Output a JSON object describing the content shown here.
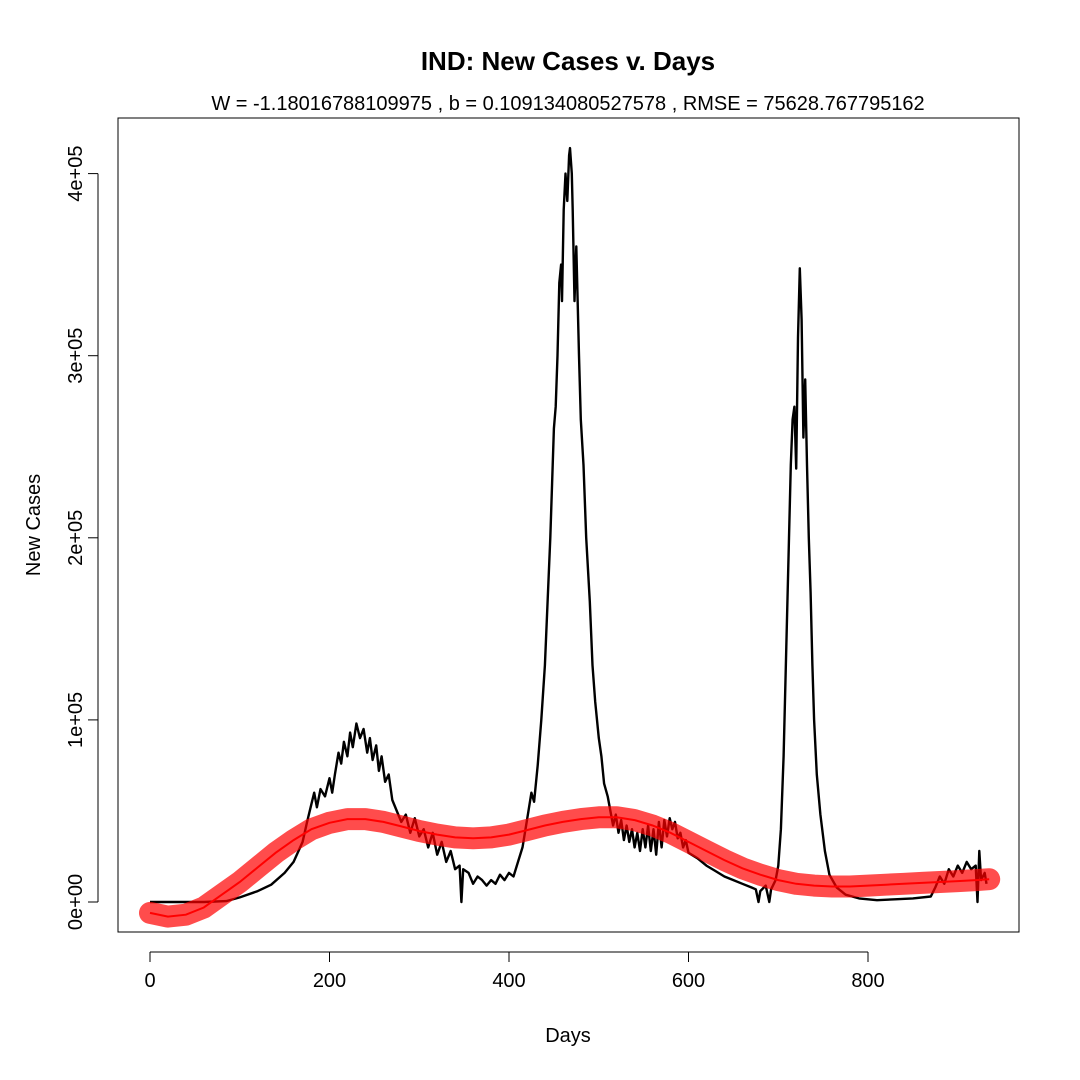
{
  "chart_data": {
    "type": "line",
    "title": "IND: New Cases v. Days",
    "subtitle": "W = -1.18016788109975 , b = 0.109134080527578 , RMSE = 75628.767795162",
    "xlabel": "Days",
    "ylabel": "New Cases",
    "xlim": [
      0,
      1000
    ],
    "ylim": [
      -15000,
      432000
    ],
    "x_ticks": [
      0,
      200,
      400,
      600,
      800
    ],
    "x_tick_labels": [
      "0",
      "200",
      "400",
      "600",
      "800"
    ],
    "y_ticks": [
      0,
      100000,
      200000,
      300000,
      400000
    ],
    "y_tick_labels": [
      "0e+00",
      "1e+05",
      "2e+05",
      "3e+05",
      "4e+05"
    ],
    "grid": false,
    "series": [
      {
        "color": "#000000",
        "points": [
          [
            0,
            0
          ],
          [
            30,
            0
          ],
          [
            60,
            0
          ],
          [
            85,
            500
          ],
          [
            100,
            2500
          ],
          [
            120,
            6000
          ],
          [
            135,
            9500
          ],
          [
            150,
            16000
          ],
          [
            160,
            22000
          ],
          [
            170,
            33000
          ],
          [
            175,
            44000
          ],
          [
            180,
            54000
          ],
          [
            183,
            60000
          ],
          [
            186,
            52000
          ],
          [
            190,
            62000
          ],
          [
            195,
            58000
          ],
          [
            200,
            68000
          ],
          [
            203,
            60000
          ],
          [
            206,
            70000
          ],
          [
            210,
            82000
          ],
          [
            213,
            76000
          ],
          [
            216,
            88000
          ],
          [
            220,
            80000
          ],
          [
            223,
            93000
          ],
          [
            226,
            85000
          ],
          [
            230,
            98000
          ],
          [
            234,
            90000
          ],
          [
            238,
            95000
          ],
          [
            242,
            82000
          ],
          [
            245,
            90000
          ],
          [
            248,
            78000
          ],
          [
            252,
            86000
          ],
          [
            255,
            72000
          ],
          [
            258,
            80000
          ],
          [
            262,
            66000
          ],
          [
            266,
            70000
          ],
          [
            270,
            56000
          ],
          [
            275,
            50000
          ],
          [
            280,
            44000
          ],
          [
            285,
            48000
          ],
          [
            290,
            38000
          ],
          [
            295,
            46000
          ],
          [
            300,
            36000
          ],
          [
            305,
            40000
          ],
          [
            310,
            30000
          ],
          [
            315,
            38000
          ],
          [
            320,
            26000
          ],
          [
            325,
            33000
          ],
          [
            330,
            22000
          ],
          [
            335,
            28000
          ],
          [
            340,
            18000
          ],
          [
            345,
            20000
          ],
          [
            347,
            0
          ],
          [
            349,
            18000
          ],
          [
            355,
            16000
          ],
          [
            360,
            10000
          ],
          [
            365,
            14000
          ],
          [
            370,
            12000
          ],
          [
            375,
            9000
          ],
          [
            380,
            12000
          ],
          [
            385,
            10000
          ],
          [
            390,
            15000
          ],
          [
            395,
            12000
          ],
          [
            400,
            16000
          ],
          [
            405,
            14000
          ],
          [
            410,
            22000
          ],
          [
            415,
            30000
          ],
          [
            420,
            45000
          ],
          [
            425,
            60000
          ],
          [
            428,
            55000
          ],
          [
            432,
            75000
          ],
          [
            436,
            100000
          ],
          [
            440,
            130000
          ],
          [
            443,
            165000
          ],
          [
            446,
            200000
          ],
          [
            448,
            230000
          ],
          [
            450,
            260000
          ],
          [
            452,
            272000
          ],
          [
            454,
            300000
          ],
          [
            456,
            340000
          ],
          [
            458,
            350000
          ],
          [
            459,
            330000
          ],
          [
            461,
            380000
          ],
          [
            463,
            400000
          ],
          [
            465,
            385000
          ],
          [
            467,
            410000
          ],
          [
            468,
            414000
          ],
          [
            470,
            400000
          ],
          [
            471,
            380000
          ],
          [
            473,
            330000
          ],
          [
            475,
            360000
          ],
          [
            478,
            300000
          ],
          [
            480,
            265000
          ],
          [
            483,
            240000
          ],
          [
            486,
            200000
          ],
          [
            490,
            165000
          ],
          [
            493,
            130000
          ],
          [
            496,
            110000
          ],
          [
            500,
            90000
          ],
          [
            503,
            80000
          ],
          [
            506,
            65000
          ],
          [
            510,
            58000
          ],
          [
            513,
            50000
          ],
          [
            516,
            42000
          ],
          [
            519,
            48000
          ],
          [
            522,
            38000
          ],
          [
            525,
            45000
          ],
          [
            528,
            34000
          ],
          [
            531,
            42000
          ],
          [
            534,
            33000
          ],
          [
            537,
            40000
          ],
          [
            540,
            30000
          ],
          [
            543,
            38000
          ],
          [
            546,
            28000
          ],
          [
            549,
            40000
          ],
          [
            552,
            30000
          ],
          [
            555,
            42000
          ],
          [
            558,
            28000
          ],
          [
            561,
            40000
          ],
          [
            564,
            26000
          ],
          [
            567,
            44000
          ],
          [
            570,
            30000
          ],
          [
            573,
            45000
          ],
          [
            576,
            36000
          ],
          [
            579,
            46000
          ],
          [
            582,
            40000
          ],
          [
            585,
            44000
          ],
          [
            588,
            35000
          ],
          [
            591,
            38000
          ],
          [
            594,
            30000
          ],
          [
            597,
            34000
          ],
          [
            600,
            27000
          ],
          [
            610,
            24000
          ],
          [
            620,
            20000
          ],
          [
            630,
            17000
          ],
          [
            640,
            14000
          ],
          [
            650,
            12000
          ],
          [
            660,
            10000
          ],
          [
            670,
            8000
          ],
          [
            675,
            7000
          ],
          [
            678,
            0
          ],
          [
            680,
            6000
          ],
          [
            686,
            9000
          ],
          [
            690,
            0
          ],
          [
            692,
            7000
          ],
          [
            697,
            12000
          ],
          [
            700,
            20000
          ],
          [
            703,
            40000
          ],
          [
            706,
            80000
          ],
          [
            709,
            140000
          ],
          [
            712,
            200000
          ],
          [
            714,
            240000
          ],
          [
            716,
            265000
          ],
          [
            718,
            272000
          ],
          [
            720,
            238000
          ],
          [
            722,
            310000
          ],
          [
            724,
            348000
          ],
          [
            726,
            320000
          ],
          [
            728,
            255000
          ],
          [
            730,
            287000
          ],
          [
            732,
            240000
          ],
          [
            734,
            200000
          ],
          [
            736,
            170000
          ],
          [
            738,
            130000
          ],
          [
            740,
            100000
          ],
          [
            743,
            70000
          ],
          [
            747,
            48000
          ],
          [
            752,
            28000
          ],
          [
            757,
            15000
          ],
          [
            765,
            8000
          ],
          [
            775,
            4000
          ],
          [
            790,
            2000
          ],
          [
            810,
            1000
          ],
          [
            830,
            1500
          ],
          [
            850,
            2000
          ],
          [
            870,
            3000
          ],
          [
            875,
            8000
          ],
          [
            880,
            14000
          ],
          [
            885,
            10000
          ],
          [
            890,
            18000
          ],
          [
            895,
            14000
          ],
          [
            900,
            20000
          ],
          [
            905,
            16000
          ],
          [
            910,
            22000
          ],
          [
            915,
            18000
          ],
          [
            920,
            20000
          ],
          [
            922,
            0
          ],
          [
            924,
            28000
          ],
          [
            926,
            12000
          ],
          [
            930,
            16000
          ],
          [
            932,
            10000
          ]
        ]
      },
      {
        "color": "#ff0000",
        "points": [
          [
            0,
            -6000
          ],
          [
            20,
            -8000
          ],
          [
            40,
            -7000
          ],
          [
            60,
            -3000
          ],
          [
            80,
            4000
          ],
          [
            100,
            11000
          ],
          [
            120,
            19000
          ],
          [
            140,
            27000
          ],
          [
            160,
            34000
          ],
          [
            180,
            40000
          ],
          [
            200,
            43500
          ],
          [
            220,
            45500
          ],
          [
            240,
            45500
          ],
          [
            260,
            44000
          ],
          [
            280,
            41500
          ],
          [
            300,
            39000
          ],
          [
            320,
            37000
          ],
          [
            340,
            35500
          ],
          [
            360,
            35000
          ],
          [
            380,
            35500
          ],
          [
            400,
            37000
          ],
          [
            420,
            39500
          ],
          [
            440,
            42000
          ],
          [
            460,
            44000
          ],
          [
            480,
            45500
          ],
          [
            500,
            46500
          ],
          [
            520,
            46500
          ],
          [
            540,
            45000
          ],
          [
            560,
            42000
          ],
          [
            580,
            38000
          ],
          [
            600,
            33000
          ],
          [
            620,
            28000
          ],
          [
            640,
            23000
          ],
          [
            660,
            18500
          ],
          [
            680,
            15000
          ],
          [
            700,
            12000
          ],
          [
            720,
            10000
          ],
          [
            740,
            9000
          ],
          [
            760,
            8500
          ],
          [
            780,
            8500
          ],
          [
            800,
            9000
          ],
          [
            820,
            9500
          ],
          [
            840,
            10000
          ],
          [
            860,
            10500
          ],
          [
            880,
            11000
          ],
          [
            900,
            11500
          ],
          [
            920,
            12000
          ],
          [
            935,
            12500
          ]
        ]
      }
    ]
  }
}
